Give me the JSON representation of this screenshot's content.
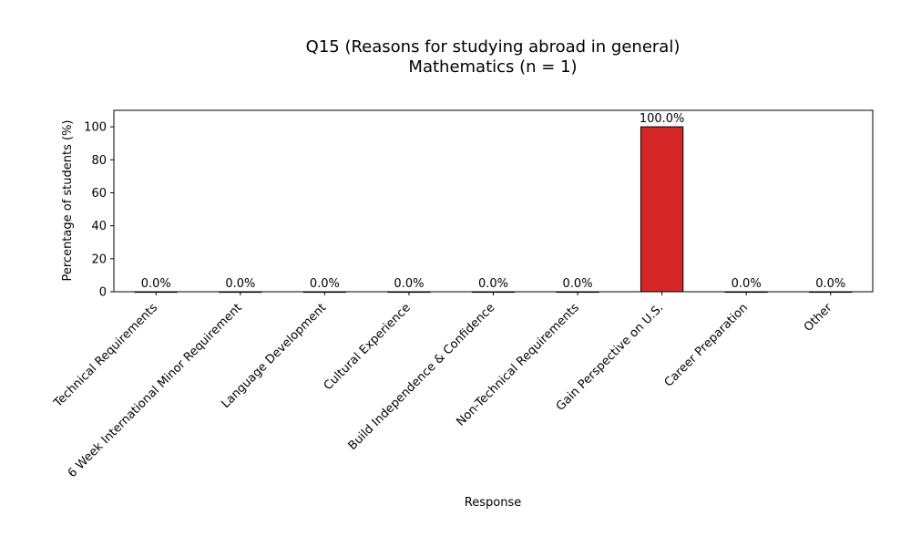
{
  "chart_data": {
    "type": "bar",
    "title": "Q15 (Reasons for studying abroad in general)",
    "subtitle": "Mathematics (n = 1)",
    "xlabel": "Response",
    "ylabel": "Percentage of students (%)",
    "ylim": [
      0,
      110
    ],
    "yticks": [
      0,
      20,
      40,
      60,
      80,
      100
    ],
    "grid": false,
    "categories": [
      "Technical Requirements",
      "6 Week International Minor Requirement",
      "Language Development",
      "Cultural Experience",
      "Build Independence & Confidence",
      "Non-Technical Requirements",
      "Gain Perspective on U.S.",
      "Career Preparation",
      "Other"
    ],
    "values": [
      0,
      0,
      0,
      0,
      0,
      0,
      100,
      0,
      0
    ],
    "data_labels": [
      "0.0%",
      "0.0%",
      "0.0%",
      "0.0%",
      "0.0%",
      "0.0%",
      "100.0%",
      "0.0%",
      "0.0%"
    ],
    "bar_color": "#d62728",
    "bar_edge_color": "#000000"
  }
}
